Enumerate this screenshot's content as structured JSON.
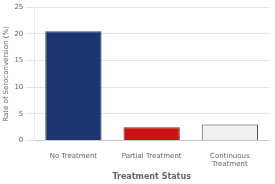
{
  "chart_data": {
    "type": "bar",
    "categories": [
      "No Treatment",
      "Partial Treatment",
      "Continuous\nTreatment"
    ],
    "values": [
      20.5,
      2.5,
      3.0
    ],
    "colors": [
      "#1a3570",
      "#cc1111",
      "#f0f0f0"
    ],
    "xlabel": "Treatment Status",
    "ylabel": "Rate of Seroconversion (%)",
    "ylim": [
      0,
      25
    ],
    "yticks": [
      0,
      5,
      10,
      15,
      20,
      25
    ],
    "grid": true
  }
}
